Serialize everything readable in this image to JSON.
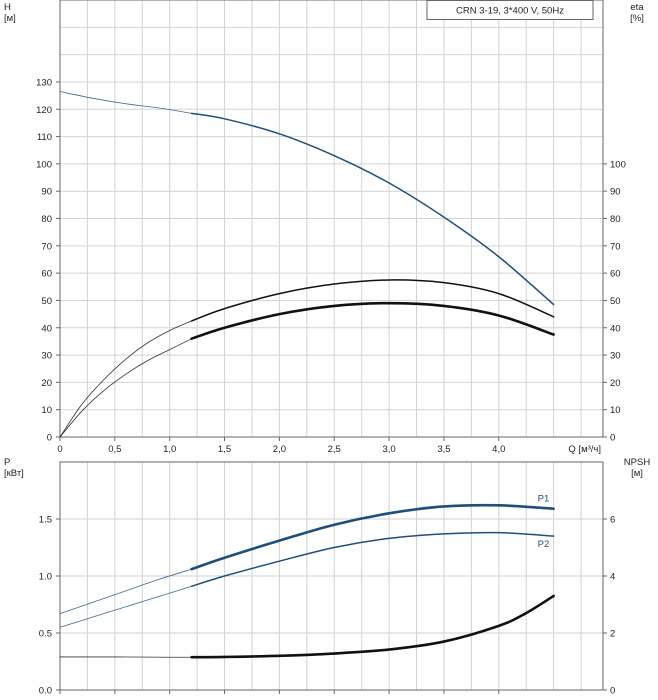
{
  "chart_data": [
    {
      "type": "line",
      "legend": "CRN 3-19, 3*400 V, 50Hz",
      "xlabel": "Q [м³/ч]",
      "ylabel": "H\n[м]",
      "y2label": "eta\n[%]",
      "xlim": [
        0,
        4.95
      ],
      "ylim": [
        0,
        160
      ],
      "y2lim": [
        0,
        160
      ],
      "grid": true,
      "x_ticks": [
        0,
        0.5,
        1.0,
        1.5,
        2.0,
        2.5,
        3.0,
        3.5,
        4.0
      ],
      "x_tick_labels": [
        "0",
        "0,5",
        "1,0",
        "1,5",
        "2,0",
        "2,5",
        "3,0",
        "3,5",
        "4,0"
      ],
      "y_ticks": [
        0,
        10,
        20,
        30,
        40,
        50,
        60,
        70,
        80,
        90,
        100,
        110,
        120,
        130
      ],
      "y_tick_labels": [
        "0",
        "10",
        "20",
        "30",
        "40",
        "50",
        "60",
        "70",
        "80",
        "90",
        "100",
        "110",
        "120",
        "130"
      ],
      "y2_ticks": [
        0,
        10,
        20,
        30,
        40,
        50,
        60,
        70,
        80,
        90,
        100
      ],
      "y2_tick_labels": [
        "0",
        "10",
        "20",
        "30",
        "40",
        "50",
        "60",
        "70",
        "80",
        "90",
        "100"
      ],
      "series": [
        {
          "color": "#1f4e7a",
          "x": [
            0,
            0.3,
            0.6,
            0.9,
            1.2,
            1.5,
            2.0,
            2.5,
            3.0,
            3.5,
            4.0,
            4.5
          ],
          "y": [
            126.5,
            124,
            122,
            120.5,
            118.5,
            116.5,
            111,
            103,
            93,
            80.5,
            66,
            48.5
          ],
          "working_from_x": 1.2
        },
        {
          "color": "#111111",
          "x": [
            0,
            0.2,
            0.4,
            0.6,
            0.8,
            1.0,
            1.2,
            1.5,
            2.0,
            2.5,
            3.0,
            3.5,
            4.0,
            4.5
          ],
          "y": [
            0,
            12,
            21,
            28.5,
            34.5,
            39,
            42.5,
            47,
            52.5,
            56,
            57.5,
            56.5,
            52.5,
            44
          ],
          "working_from_x": 1.2
        },
        {
          "color": "#111111",
          "x": [
            0,
            0.2,
            0.4,
            0.6,
            0.8,
            1.0,
            1.2,
            1.5,
            2.0,
            2.5,
            3.0,
            3.5,
            4.0,
            4.5
          ],
          "y": [
            0,
            9.5,
            17,
            23,
            28,
            32,
            36,
            40,
            45,
            48,
            49,
            48,
            44.5,
            37.5
          ],
          "working_from_x": 1.2,
          "bold": true
        }
      ]
    },
    {
      "type": "line",
      "ylabel": "P\n[кВт]",
      "y2label": "NPSH\n[м]",
      "xlim": [
        0,
        4.95
      ],
      "ylim": [
        0,
        2.0
      ],
      "y2lim": [
        0,
        8
      ],
      "grid": true,
      "y_ticks": [
        0,
        0.5,
        1.0,
        1.5
      ],
      "y_tick_labels": [
        "0.0",
        "0.5",
        "1.0",
        "1.5"
      ],
      "y2_ticks": [
        0,
        2,
        4,
        6
      ],
      "y2_tick_labels": [
        "0",
        "2",
        "4",
        "6"
      ],
      "series": [
        {
          "name": "P1",
          "color": "#1f4e7a",
          "axis": "left",
          "bold": true,
          "x": [
            0,
            0.3,
            0.6,
            0.9,
            1.2,
            1.5,
            2.0,
            2.5,
            3.0,
            3.5,
            4.0,
            4.5
          ],
          "y": [
            0.67,
            0.77,
            0.87,
            0.97,
            1.06,
            1.16,
            1.31,
            1.45,
            1.55,
            1.61,
            1.62,
            1.59
          ],
          "working_from_x": 1.2
        },
        {
          "name": "P2",
          "color": "#1f4e7a",
          "axis": "left",
          "x": [
            0,
            0.3,
            0.6,
            0.9,
            1.2,
            1.5,
            2.0,
            2.5,
            3.0,
            3.5,
            4.0,
            4.5
          ],
          "y": [
            0.55,
            0.64,
            0.73,
            0.82,
            0.91,
            1.0,
            1.13,
            1.25,
            1.33,
            1.37,
            1.38,
            1.35
          ],
          "working_from_x": 1.2
        },
        {
          "color": "#111111",
          "axis": "right",
          "bold": true,
          "x": [
            0,
            0.5,
            1.0,
            1.2,
            1.5,
            2.0,
            2.5,
            3.0,
            3.5,
            4.0,
            4.25,
            4.5
          ],
          "y": [
            1.16,
            1.16,
            1.15,
            1.15,
            1.16,
            1.2,
            1.28,
            1.42,
            1.7,
            2.25,
            2.7,
            3.3
          ],
          "working_from_x": 1.2
        }
      ]
    }
  ]
}
